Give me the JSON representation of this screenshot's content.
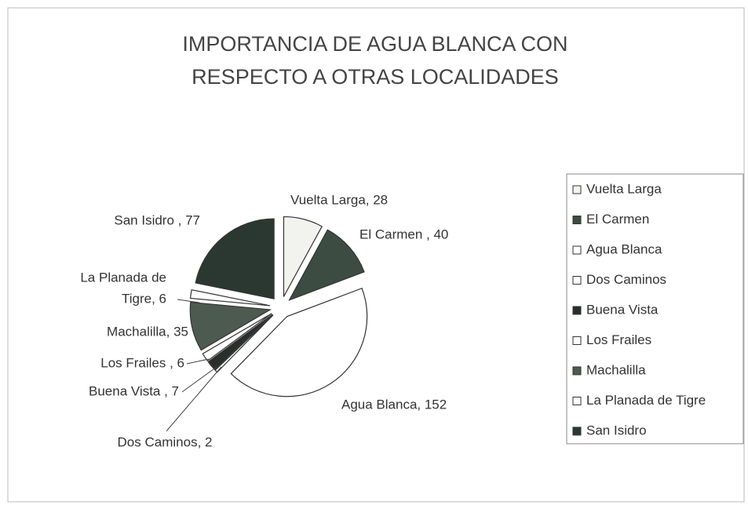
{
  "chart_data": {
    "type": "pie",
    "title": [
      "IMPORTANCIA DE AGUA BLANCA CON",
      "RESPECTO A OTRAS  LOCALIDADES"
    ],
    "categories": [
      "Vuelta Larga",
      "El Carmen",
      "Agua Blanca",
      "Dos Caminos",
      "Buena Vista",
      "Los Frailes",
      "Machalilla",
      "La Planada de Tigre",
      "San Isidro"
    ],
    "values": [
      28,
      40,
      152,
      2,
      7,
      6,
      35,
      6,
      77
    ],
    "value_labels": [
      "Vuelta Larga, 28",
      "El Carmen , 40",
      "Agua Blanca, 152",
      "Dos Caminos, 2",
      "Buena Vista , 7",
      "Los Frailes , 6",
      "Machalilla, 35",
      [
        "La Planada de",
        "Tigre, 6"
      ],
      "San Isidro , 77"
    ],
    "colors": [
      "#f2f2ee",
      "#3c4c42",
      "#ffffff",
      "#ffffff",
      "#2a2f2b",
      "#ffffff",
      "#4d5a50",
      "#ffffff",
      "#2b3832"
    ],
    "legend": "right"
  }
}
